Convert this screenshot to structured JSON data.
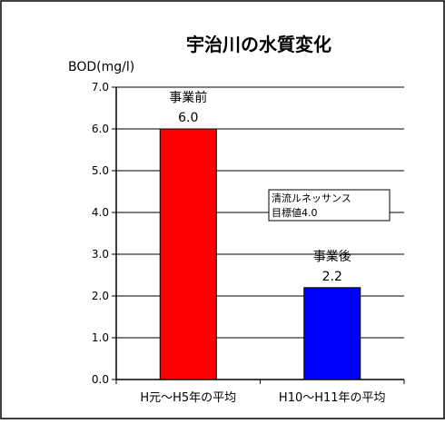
{
  "chart_data": {
    "type": "bar",
    "title": "宇治川の水質変化",
    "ylabel": "BOD(mg/l)",
    "xlabel": "",
    "categories": [
      "H元～H5年の平均",
      "H10～H11年の平均"
    ],
    "values": [
      6.0,
      2.2
    ],
    "bar_colors": [
      "#ff0000",
      "#0000ff"
    ],
    "data_labels": [
      {
        "name": "事業前",
        "value": "6.0"
      },
      {
        "name": "事業後",
        "value": "2.2"
      }
    ],
    "ylim": [
      0,
      7
    ],
    "yticks": [
      0,
      1,
      2,
      3,
      4,
      5,
      6,
      7
    ],
    "ytick_labels": [
      "0.0",
      "1.0",
      "2.0",
      "3.0",
      "4.0",
      "5.0",
      "6.0",
      "7.0"
    ],
    "grid": true,
    "legend": "none",
    "annotation": {
      "line1": "清流ルネッサンス",
      "line2": "目標値4.0"
    }
  }
}
